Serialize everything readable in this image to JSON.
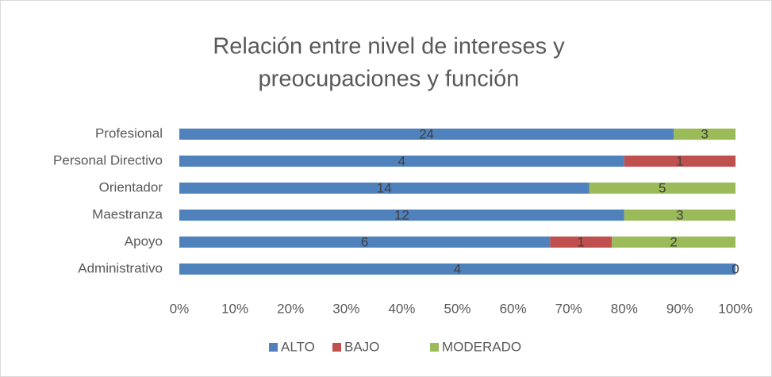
{
  "chart_data": {
    "type": "bar",
    "orientation": "horizontal",
    "stacked": "percent",
    "title": [
      "Relación entre nivel de intereses y",
      "preocupaciones y función"
    ],
    "categories": [
      "Administrativo",
      "Apoyo",
      "Maestranza",
      "Orientador",
      "Personal Directivo",
      "Profesional"
    ],
    "series": [
      {
        "name": "ALTO",
        "color": "#4f81bd",
        "values": [
          4,
          6,
          12,
          14,
          4,
          24
        ]
      },
      {
        "name": "BAJO",
        "color": "#c0504d",
        "values": [
          null,
          1,
          null,
          null,
          1,
          null
        ]
      },
      {
        "name": "MODERADO",
        "color": "#9bbb59",
        "values": [
          0,
          2,
          3,
          5,
          null,
          3
        ]
      }
    ],
    "xlim": [
      0,
      100
    ],
    "xticks": [
      {
        "value": 0,
        "label": "0%"
      },
      {
        "value": 10,
        "label": "10%"
      },
      {
        "value": 20,
        "label": "20%"
      },
      {
        "value": 30,
        "label": "30%"
      },
      {
        "value": 40,
        "label": "40%"
      },
      {
        "value": 50,
        "label": "50%"
      },
      {
        "value": 60,
        "label": "60%"
      },
      {
        "value": 70,
        "label": "70%"
      },
      {
        "value": 80,
        "label": "80%"
      },
      {
        "value": 90,
        "label": "90%"
      },
      {
        "value": 100,
        "label": "100%"
      }
    ],
    "legend": "bottom",
    "grid": false
  }
}
